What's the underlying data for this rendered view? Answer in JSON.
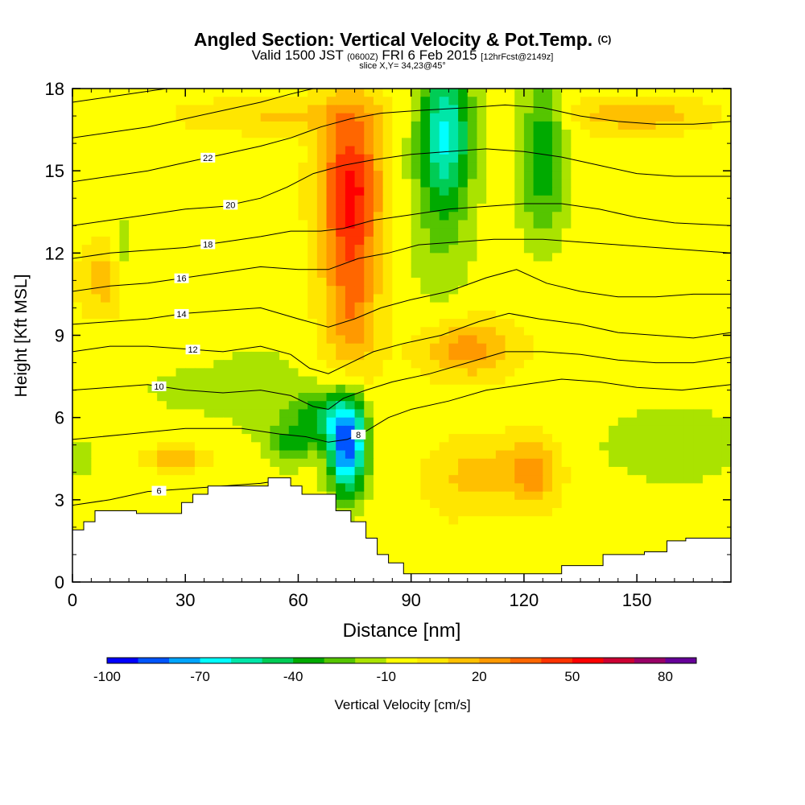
{
  "header": {
    "title": "Angled Section: Vertical Velocity & Pot.Temp.",
    "title_suffix": "(C)",
    "subtitle_a": "Valid 1500 JST",
    "subtitle_b": "(0600Z)",
    "subtitle_c": "FRI 6 Feb 2015",
    "subtitle_d": "[12hrFcst@2149z]",
    "slice": "slice X,Y= 34,23@45°"
  },
  "chart_data": {
    "type": "heatmap",
    "xlabel": "Distance [nm]",
    "ylabel": "Height [Kft MSL]",
    "xlim": [
      0,
      175
    ],
    "ylim": [
      0,
      18
    ],
    "x_ticks": [
      0,
      30,
      60,
      90,
      120,
      150
    ],
    "y_ticks": [
      0,
      3,
      6,
      9,
      12,
      15,
      18
    ],
    "colorbar": {
      "label": "Vertical Velocity [cm/s]",
      "range": [
        -100,
        90
      ],
      "step": 10,
      "tick_labels": [
        "-100",
        "-70",
        "-40",
        "-10",
        "20",
        "50",
        "80"
      ],
      "tick_values": [
        -100,
        -70,
        -40,
        -10,
        20,
        50,
        80
      ],
      "colors": [
        "#0000ff",
        "#0055ff",
        "#00a5ff",
        "#00ffff",
        "#00e6a8",
        "#00cc55",
        "#00aa00",
        "#55c500",
        "#aae300",
        "#ffff00",
        "#ffe600",
        "#ffc000",
        "#ff9900",
        "#ff6600",
        "#ff3300",
        "#ff0000",
        "#cc0033",
        "#990066",
        "#660099"
      ]
    },
    "terrain": [
      [
        0,
        1.9
      ],
      [
        3,
        1.9
      ],
      [
        3,
        2.2
      ],
      [
        6,
        2.2
      ],
      [
        6,
        2.6
      ],
      [
        17,
        2.6
      ],
      [
        17,
        2.5
      ],
      [
        29,
        2.5
      ],
      [
        29,
        2.9
      ],
      [
        32,
        2.9
      ],
      [
        32,
        3.2
      ],
      [
        36,
        3.2
      ],
      [
        36,
        3.5
      ],
      [
        52,
        3.5
      ],
      [
        52,
        3.8
      ],
      [
        58,
        3.8
      ],
      [
        58,
        3.5
      ],
      [
        61,
        3.5
      ],
      [
        61,
        3.2
      ],
      [
        70,
        3.2
      ],
      [
        70,
        2.6
      ],
      [
        74,
        2.6
      ],
      [
        74,
        2.2
      ],
      [
        78,
        2.2
      ],
      [
        78,
        1.6
      ],
      [
        81,
        1.6
      ],
      [
        81,
        1.0
      ],
      [
        84,
        1.0
      ],
      [
        84,
        0.7
      ],
      [
        88,
        0.7
      ],
      [
        88,
        0.3
      ],
      [
        130,
        0.3
      ],
      [
        130,
        0.6
      ],
      [
        141,
        0.6
      ],
      [
        141,
        1.0
      ],
      [
        152,
        1.0
      ],
      [
        152,
        1.1
      ],
      [
        158,
        1.1
      ],
      [
        158,
        1.5
      ],
      [
        163,
        1.5
      ],
      [
        163,
        1.6
      ],
      [
        175,
        1.6
      ]
    ],
    "velocity_blobs": [
      {
        "x": 74,
        "y": 14.5,
        "w": -5,
        "sx": 8,
        "sy": 30,
        "v": 55
      },
      {
        "x": 74,
        "y": 10,
        "w": -3,
        "sx": 7,
        "sy": 30,
        "v": 30
      },
      {
        "x": 99,
        "y": 16.5,
        "w": -5,
        "sx": 7,
        "sy": 26,
        "v": -55
      },
      {
        "x": 98,
        "y": 13,
        "w": -3,
        "sx": 9,
        "sy": 30,
        "v": -15
      },
      {
        "x": 73,
        "y": 5,
        "w": -4,
        "sx": 5,
        "sy": 18,
        "v": -85
      },
      {
        "x": 66,
        "y": 6,
        "w": -3,
        "sx": 8,
        "sy": 10,
        "v": -30
      },
      {
        "x": 58,
        "y": 5,
        "w": -3,
        "sx": 6,
        "sy": 8,
        "v": -25
      },
      {
        "x": 50,
        "y": 7,
        "w": -3,
        "sx": 12,
        "sy": 18,
        "v": -12
      },
      {
        "x": 32,
        "y": 7,
        "w": -3,
        "sx": 12,
        "sy": 8,
        "v": -14
      },
      {
        "x": 125,
        "y": 15.5,
        "w": -5,
        "sx": 6,
        "sy": 30,
        "v": -35
      },
      {
        "x": 105,
        "y": 8.5,
        "w": -4,
        "sx": 12,
        "sy": 10,
        "v": 30
      },
      {
        "x": 110,
        "y": 4,
        "w": -4,
        "sx": 14,
        "sy": 12,
        "v": 18
      },
      {
        "x": 123,
        "y": 4,
        "w": -4,
        "sx": 6,
        "sy": 12,
        "v": 25
      },
      {
        "x": 100,
        "y": 3,
        "w": -3,
        "sx": 6,
        "sy": 12,
        "v": 4
      },
      {
        "x": 160,
        "y": 5,
        "w": -3,
        "sx": 20,
        "sy": 14,
        "v": -15
      },
      {
        "x": 150,
        "y": 17,
        "w": -4,
        "sx": 18,
        "sy": 6,
        "v": 22
      },
      {
        "x": 55,
        "y": 17,
        "w": -4,
        "sx": 25,
        "sy": 6,
        "v": 15
      },
      {
        "x": 8,
        "y": 11,
        "w": -4,
        "sx": 6,
        "sy": 12,
        "v": 20
      },
      {
        "x": 28,
        "y": 4.5,
        "w": -4,
        "sx": 8,
        "sy": 4,
        "v": 22
      },
      {
        "x": 3,
        "y": 4.5,
        "w": -4,
        "sx": 4,
        "sy": 8,
        "v": -12
      },
      {
        "x": 14,
        "y": 12,
        "w": -3,
        "sx": 3,
        "sy": 16,
        "v": -12
      }
    ],
    "isentropes": [
      {
        "value": 6,
        "label_at": 23,
        "points": [
          [
            0,
            2.8
          ],
          [
            10,
            3.0
          ],
          [
            20,
            3.3
          ],
          [
            30,
            3.4
          ],
          [
            40,
            3.5
          ],
          [
            50,
            3.6
          ],
          [
            55,
            3.7
          ]
        ]
      },
      {
        "value": 8,
        "label_at": 76,
        "points": [
          [
            0,
            5.2
          ],
          [
            15,
            5.4
          ],
          [
            30,
            5.6
          ],
          [
            45,
            5.6
          ],
          [
            55,
            5.4
          ],
          [
            62,
            5.3
          ],
          [
            68,
            5.1
          ],
          [
            73,
            5.2
          ],
          [
            78,
            5.5
          ],
          [
            84,
            6.0
          ],
          [
            90,
            6.3
          ],
          [
            100,
            6.6
          ],
          [
            110,
            7.0
          ],
          [
            120,
            7.2
          ],
          [
            130,
            7.4
          ],
          [
            140,
            7.3
          ],
          [
            150,
            7.1
          ],
          [
            162,
            7.0
          ],
          [
            175,
            7.2
          ]
        ]
      },
      {
        "value": 10,
        "label_at": 23,
        "points": [
          [
            0,
            7.0
          ],
          [
            10,
            7.1
          ],
          [
            20,
            7.2
          ],
          [
            30,
            7.0
          ],
          [
            40,
            6.9
          ],
          [
            50,
            7.0
          ],
          [
            58,
            6.8
          ],
          [
            64,
            6.4
          ],
          [
            68,
            6.3
          ],
          [
            72,
            6.7
          ],
          [
            78,
            7.0
          ],
          [
            85,
            7.3
          ],
          [
            95,
            7.6
          ],
          [
            105,
            8.0
          ],
          [
            115,
            8.4
          ],
          [
            125,
            8.4
          ],
          [
            135,
            8.3
          ],
          [
            145,
            8.1
          ],
          [
            155,
            8.0
          ],
          [
            165,
            8.0
          ],
          [
            175,
            8.2
          ]
        ]
      },
      {
        "value": 12,
        "label_at": 32,
        "points": [
          [
            0,
            8.4
          ],
          [
            10,
            8.6
          ],
          [
            20,
            8.6
          ],
          [
            30,
            8.5
          ],
          [
            40,
            8.4
          ],
          [
            50,
            8.6
          ],
          [
            58,
            8.3
          ],
          [
            63,
            7.8
          ],
          [
            68,
            7.6
          ],
          [
            74,
            8.0
          ],
          [
            80,
            8.4
          ],
          [
            88,
            8.7
          ],
          [
            98,
            9.0
          ],
          [
            108,
            9.5
          ],
          [
            116,
            9.8
          ],
          [
            124,
            9.6
          ],
          [
            135,
            9.4
          ],
          [
            145,
            9.1
          ],
          [
            155,
            9.0
          ],
          [
            165,
            8.9
          ],
          [
            175,
            9.1
          ]
        ]
      },
      {
        "value": 14,
        "label_at": 29,
        "points": [
          [
            0,
            9.4
          ],
          [
            10,
            9.5
          ],
          [
            20,
            9.6
          ],
          [
            30,
            9.8
          ],
          [
            40,
            9.9
          ],
          [
            50,
            10.0
          ],
          [
            60,
            9.6
          ],
          [
            68,
            9.3
          ],
          [
            75,
            9.6
          ],
          [
            82,
            10.0
          ],
          [
            90,
            10.3
          ],
          [
            100,
            10.6
          ],
          [
            110,
            11.1
          ],
          [
            118,
            11.4
          ],
          [
            126,
            10.9
          ],
          [
            135,
            10.6
          ],
          [
            145,
            10.4
          ],
          [
            155,
            10.4
          ],
          [
            165,
            10.5
          ],
          [
            175,
            10.5
          ]
        ]
      },
      {
        "value": 16,
        "label_at": 29,
        "points": [
          [
            0,
            10.6
          ],
          [
            10,
            10.8
          ],
          [
            20,
            10.9
          ],
          [
            30,
            11.1
          ],
          [
            40,
            11.3
          ],
          [
            50,
            11.5
          ],
          [
            60,
            11.4
          ],
          [
            68,
            11.4
          ],
          [
            76,
            11.8
          ],
          [
            84,
            12.0
          ],
          [
            92,
            12.3
          ],
          [
            102,
            12.4
          ],
          [
            112,
            12.5
          ],
          [
            125,
            12.5
          ],
          [
            135,
            12.4
          ],
          [
            145,
            12.3
          ],
          [
            155,
            12.2
          ],
          [
            165,
            12.1
          ],
          [
            175,
            12.0
          ]
        ]
      },
      {
        "value": 18,
        "label_at": 36,
        "points": [
          [
            0,
            11.8
          ],
          [
            10,
            12.0
          ],
          [
            20,
            12.1
          ],
          [
            30,
            12.2
          ],
          [
            40,
            12.4
          ],
          [
            50,
            12.6
          ],
          [
            58,
            12.8
          ],
          [
            66,
            12.8
          ],
          [
            72,
            12.9
          ],
          [
            80,
            13.2
          ],
          [
            90,
            13.4
          ],
          [
            100,
            13.6
          ],
          [
            110,
            13.7
          ],
          [
            120,
            13.8
          ],
          [
            130,
            13.8
          ],
          [
            140,
            13.6
          ],
          [
            150,
            13.3
          ],
          [
            160,
            13.1
          ],
          [
            175,
            13.0
          ]
        ]
      },
      {
        "value": 20,
        "label_at": 42,
        "points": [
          [
            0,
            13.0
          ],
          [
            10,
            13.2
          ],
          [
            20,
            13.4
          ],
          [
            30,
            13.6
          ],
          [
            40,
            13.7
          ],
          [
            50,
            14.0
          ],
          [
            57,
            14.4
          ],
          [
            64,
            14.9
          ],
          [
            72,
            15.2
          ],
          [
            80,
            15.4
          ],
          [
            90,
            15.6
          ],
          [
            100,
            15.7
          ],
          [
            110,
            15.8
          ],
          [
            120,
            15.7
          ],
          [
            130,
            15.5
          ],
          [
            140,
            15.2
          ],
          [
            150,
            14.9
          ],
          [
            160,
            14.8
          ],
          [
            175,
            14.8
          ]
        ]
      },
      {
        "value": 22,
        "label_at": 36,
        "points": [
          [
            0,
            14.6
          ],
          [
            10,
            14.8
          ],
          [
            20,
            15.0
          ],
          [
            30,
            15.3
          ],
          [
            40,
            15.6
          ],
          [
            50,
            15.9
          ],
          [
            58,
            16.2
          ],
          [
            66,
            16.6
          ],
          [
            74,
            16.9
          ],
          [
            82,
            17.1
          ],
          [
            92,
            17.2
          ],
          [
            105,
            17.3
          ],
          [
            115,
            17.4
          ],
          [
            125,
            17.3
          ],
          [
            135,
            17.0
          ],
          [
            145,
            16.8
          ],
          [
            155,
            16.7
          ],
          [
            165,
            16.7
          ],
          [
            175,
            16.8
          ]
        ]
      },
      {
        "value": 24,
        "label_at": 0,
        "points": [
          [
            0,
            16.2
          ],
          [
            10,
            16.4
          ],
          [
            20,
            16.6
          ],
          [
            30,
            16.9
          ],
          [
            40,
            17.2
          ],
          [
            50,
            17.5
          ],
          [
            58,
            17.8
          ],
          [
            64,
            18.0
          ]
        ]
      },
      {
        "value": 26,
        "label_at": 0,
        "points": [
          [
            0,
            17.5
          ],
          [
            10,
            17.7
          ],
          [
            20,
            17.9
          ],
          [
            25,
            18.0
          ]
        ]
      }
    ]
  }
}
